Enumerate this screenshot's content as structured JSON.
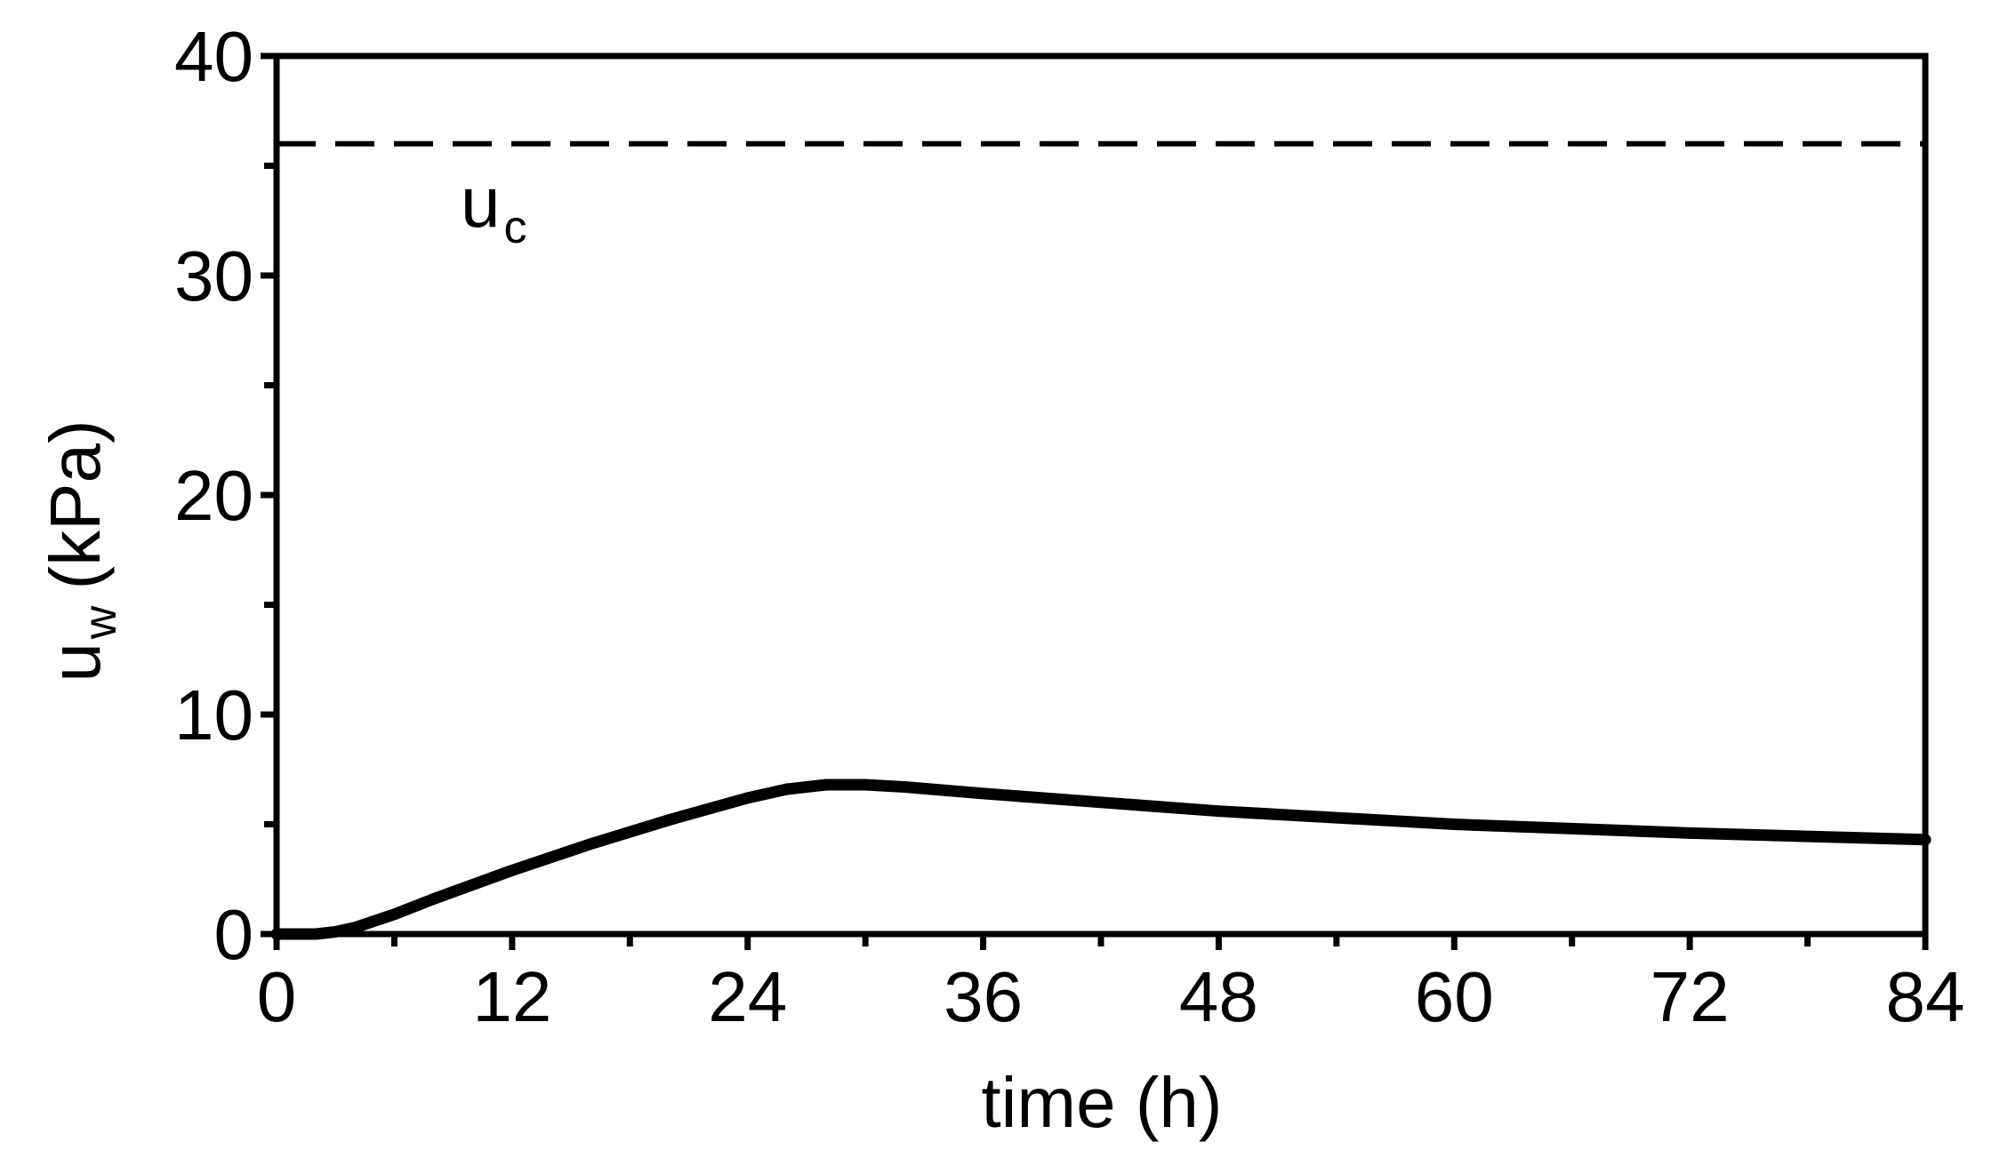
{
  "chart_data": {
    "type": "line",
    "xlabel": "time (h)",
    "ylabel": {
      "base": "u",
      "subscript": "w",
      "unit": "(kPa)"
    },
    "xlim": [
      0,
      84
    ],
    "ylim": [
      0,
      40
    ],
    "x_ticks": [
      0,
      12,
      24,
      36,
      48,
      60,
      72,
      84
    ],
    "x_minor_ticks": [
      6,
      18,
      30,
      42,
      54,
      66,
      78
    ],
    "y_ticks": [
      0,
      10,
      20,
      30,
      40
    ],
    "y_minor_ticks": [
      5,
      15,
      25,
      35
    ],
    "grid": false,
    "series": [
      {
        "style": "solid",
        "color": "#000000",
        "x": [
          0,
          2,
          3,
          4,
          6,
          8,
          12,
          16,
          20,
          24,
          26,
          28,
          30,
          32,
          36,
          42,
          48,
          54,
          60,
          66,
          72,
          78,
          84
        ],
        "y": [
          0,
          0,
          0.1,
          0.3,
          0.9,
          1.6,
          2.9,
          4.1,
          5.2,
          6.2,
          6.6,
          6.8,
          6.8,
          6.7,
          6.4,
          6.0,
          5.6,
          5.3,
          5.0,
          4.8,
          4.6,
          4.45,
          4.3
        ]
      }
    ],
    "reference_lines": [
      {
        "y": 36,
        "style": "dashed",
        "color": "#000000",
        "label": {
          "base": "u",
          "subscript": "c"
        }
      }
    ]
  }
}
